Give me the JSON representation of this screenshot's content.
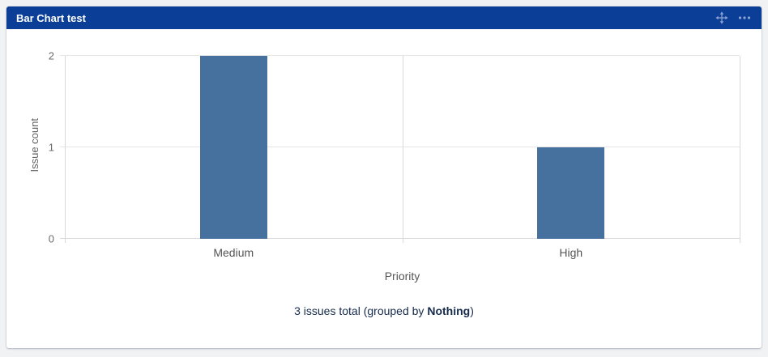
{
  "page": {
    "background": "#F1F2F4"
  },
  "widget": {
    "title": "Bar Chart test",
    "header_color": "#0B3E96",
    "header_icon_color": "#8BA2D3",
    "icons": [
      {
        "name": "move-icon",
        "meaning": "drag gadget"
      },
      {
        "name": "more-options-icon",
        "meaning": "gadget menu"
      }
    ]
  },
  "chart_data": {
    "type": "bar",
    "title": "",
    "categories": [
      "Medium",
      "High"
    ],
    "values": [
      2,
      1
    ],
    "xlabel": "Priority",
    "ylabel": "Issue count",
    "ylim": [
      0,
      2
    ],
    "yticks": [
      0,
      1,
      2
    ],
    "grid": true,
    "legend": false,
    "bar_color": "#46719E"
  },
  "footer": {
    "prefix": "3 issues total (grouped by ",
    "bold": "Nothing",
    "suffix": ")"
  }
}
